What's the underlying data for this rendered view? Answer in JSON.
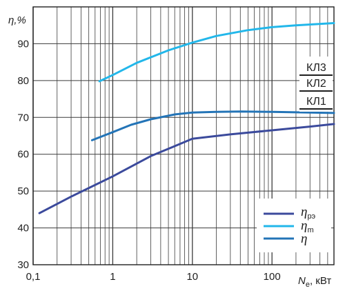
{
  "chart_data": {
    "type": "line",
    "x_scale": "log",
    "y_scale": "linear",
    "xlim": [
      0.1,
      600
    ],
    "ylim": [
      30,
      100
    ],
    "grid": true,
    "legend_position": "bottom-right",
    "xlabel": {
      "main": "N",
      "sub": "e",
      "rest": ", кВт"
    },
    "ylabel": "η,%",
    "x_ticks": [
      {
        "value": 0.1,
        "label": "0,1"
      },
      {
        "value": 1,
        "label": "1"
      },
      {
        "value": 10,
        "label": "10"
      },
      {
        "value": 100,
        "label": "100"
      }
    ],
    "y_ticks": [
      {
        "value": 30,
        "label": "30"
      },
      {
        "value": 40,
        "label": "40"
      },
      {
        "value": 50,
        "label": "50"
      },
      {
        "value": 60,
        "label": "60"
      },
      {
        "value": 70,
        "label": "70"
      },
      {
        "value": 80,
        "label": "80"
      },
      {
        "value": 90,
        "label": "90"
      }
    ],
    "series": [
      {
        "name": "η",
        "name_sub": "рэ",
        "color": "#3b4a9c",
        "points": [
          [
            0.12,
            44
          ],
          [
            0.3,
            48.5
          ],
          [
            1,
            54
          ],
          [
            3,
            59.5
          ],
          [
            10,
            64.2
          ],
          [
            30,
            65.4
          ],
          [
            100,
            66.5
          ],
          [
            300,
            67.5
          ],
          [
            600,
            68.2
          ]
        ]
      },
      {
        "name": "η",
        "name_sub": "m",
        "color": "#22b7ea",
        "points": [
          [
            0.68,
            79.8
          ],
          [
            1,
            81.5
          ],
          [
            2,
            84.8
          ],
          [
            5,
            88.2
          ],
          [
            10,
            90.3
          ],
          [
            20,
            92.1
          ],
          [
            50,
            93.7
          ],
          [
            100,
            94.5
          ],
          [
            200,
            95.0
          ],
          [
            600,
            95.6
          ]
        ]
      },
      {
        "name": "η",
        "name_sub": "",
        "color": "#2374b7",
        "points": [
          [
            0.55,
            63.8
          ],
          [
            1,
            66
          ],
          [
            1.7,
            68
          ],
          [
            3,
            69.5
          ],
          [
            6,
            70.8
          ],
          [
            10,
            71.3
          ],
          [
            20,
            71.5
          ],
          [
            40,
            71.6
          ],
          [
            100,
            71.5
          ],
          [
            300,
            71.3
          ],
          [
            600,
            71.2
          ]
        ]
      }
    ],
    "class_labels": [
      "КЛ3",
      "КЛ2",
      "КЛ1"
    ]
  }
}
